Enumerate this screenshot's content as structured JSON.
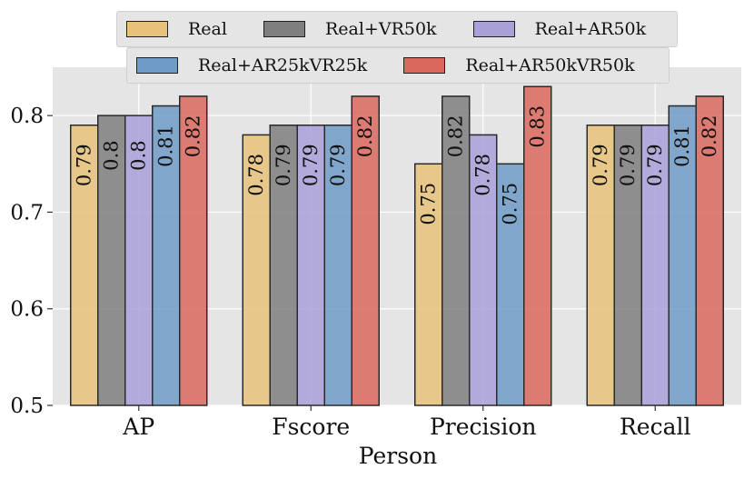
{
  "chart_data": {
    "type": "bar",
    "title": "",
    "xlabel": "Person",
    "ylabel": "",
    "ylim": [
      0.5,
      0.85
    ],
    "yticks": [
      0.5,
      0.6,
      0.7,
      0.8
    ],
    "ytick_labels": [
      "0.5",
      "0.6",
      "0.7",
      "0.8"
    ],
    "categories": [
      "AP",
      "Fscore",
      "Precision",
      "Recall"
    ],
    "grid": true,
    "legend_position": "top",
    "series": [
      {
        "name": "Real",
        "color": "#e8c27a",
        "values": [
          0.79,
          0.78,
          0.75,
          0.79
        ],
        "labels": [
          "0.79",
          "0.78",
          "0.75",
          "0.79"
        ]
      },
      {
        "name": "Real+VR50k",
        "color": "#7f7f7f",
        "values": [
          0.8,
          0.79,
          0.82,
          0.79
        ],
        "labels": [
          "0.8",
          "0.79",
          "0.82",
          "0.79"
        ]
      },
      {
        "name": "Real+AR50k",
        "color": "#a9a0d8",
        "values": [
          0.8,
          0.79,
          0.78,
          0.79
        ],
        "labels": [
          "0.8",
          "0.79",
          "0.78",
          "0.79"
        ]
      },
      {
        "name": "Real+AR25kVR25k",
        "color": "#6e9bc7",
        "values": [
          0.81,
          0.79,
          0.75,
          0.81
        ],
        "labels": [
          "0.81",
          "0.79",
          "0.75",
          "0.81"
        ]
      },
      {
        "name": "Real+AR50kVR50k",
        "color": "#d9695d",
        "values": [
          0.82,
          0.82,
          0.83,
          0.82
        ],
        "labels": [
          "0.82",
          "0.82",
          "0.83",
          "0.82"
        ]
      }
    ]
  }
}
